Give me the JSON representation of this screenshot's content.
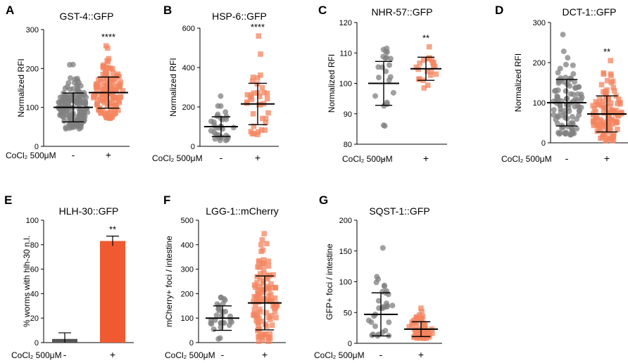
{
  "chart_data": [
    {
      "panel": "A",
      "type": "scatter",
      "title": "GST-4::GFP",
      "ylabel": "Normalized RFI",
      "ylim": [
        0,
        300
      ],
      "yticks": [
        0,
        100,
        200,
        300
      ],
      "condition_label": "CoCl₂ 500μM",
      "categories": [
        "-",
        "+"
      ],
      "series": [
        {
          "name": "-",
          "color": "#808080",
          "marker": "circle",
          "n": 160,
          "mean": 100,
          "sd": 37,
          "min": 45,
          "max": 210
        },
        {
          "name": "+",
          "color": "#F4845F",
          "marker": "square",
          "n": 130,
          "mean": 138,
          "sd": 40,
          "min": 72,
          "max": 258
        }
      ],
      "significance": "****"
    },
    {
      "panel": "B",
      "type": "scatter",
      "title": "HSP-6::GFP",
      "ylabel": "Normalized RFI",
      "ylim": [
        0,
        600
      ],
      "yticks": [
        0,
        200,
        400,
        600
      ],
      "condition_label": "CoCl₂ 500μM",
      "categories": [
        "-",
        "+"
      ],
      "series": [
        {
          "name": "-",
          "color": "#808080",
          "marker": "circle",
          "n": 32,
          "mean": 100,
          "sd": 50,
          "min": 30,
          "max": 255
        },
        {
          "name": "+",
          "color": "#F4845F",
          "marker": "square",
          "n": 36,
          "mean": 215,
          "sd": 105,
          "min": 60,
          "max": 560
        }
      ],
      "significance": "****"
    },
    {
      "panel": "C",
      "type": "scatter",
      "title": "NHR-57::GFP",
      "ylabel": "Normalized RFI",
      "ylim": [
        80,
        120
      ],
      "yticks": [
        80,
        90,
        100,
        110,
        120
      ],
      "condition_label": "CoCl₂ 500μM",
      "categories": [
        "-",
        "+"
      ],
      "series": [
        {
          "name": "-",
          "color": "#808080",
          "marker": "circle",
          "n": 22,
          "mean": 100,
          "sd": 7.2,
          "min": 86,
          "max": 111.5
        },
        {
          "name": "+",
          "color": "#F4845F",
          "marker": "square",
          "n": 22,
          "mean": 104.8,
          "sd": 3.8,
          "min": 98.5,
          "max": 112
        }
      ],
      "significance": "**"
    },
    {
      "panel": "D",
      "type": "scatter",
      "title": "DCT-1::GFP",
      "ylabel": "Normalized RFI",
      "ylim": [
        0,
        300
      ],
      "yticks": [
        0,
        100,
        200,
        300
      ],
      "condition_label": "CoCl₂ 500μM",
      "categories": [
        "-",
        "+"
      ],
      "series": [
        {
          "name": "-",
          "color": "#808080",
          "marker": "circle",
          "n": 100,
          "mean": 100,
          "sd": 58,
          "min": 20,
          "max": 270
        },
        {
          "name": "+",
          "color": "#F4845F",
          "marker": "square",
          "n": 110,
          "mean": 72,
          "sd": 45,
          "min": 5,
          "max": 205
        }
      ],
      "significance": "**"
    },
    {
      "panel": "E",
      "type": "bar",
      "title": "HLH-30::GFP",
      "ylabel": "% worms with hlh-30 n.l.",
      "ylim": [
        0,
        100
      ],
      "yticks": [
        0,
        20,
        40,
        60,
        80,
        100
      ],
      "condition_label": "CoCl₂ 500μM",
      "categories": [
        "-",
        "+"
      ],
      "values": [
        3,
        83
      ],
      "errors": [
        5,
        4
      ],
      "colors": [
        "#555555",
        "#F05A32"
      ],
      "significance": "**"
    },
    {
      "panel": "F",
      "type": "scatter",
      "title": "LGG-1::mCherry",
      "ylabel": "mCherry+ foci / intestine",
      "ylim": [
        0,
        500
      ],
      "yticks": [
        0,
        100,
        200,
        300,
        400,
        500
      ],
      "condition_label": "CoCl₂ 500μM",
      "categories": [
        "-",
        "+"
      ],
      "series": [
        {
          "name": "-",
          "color": "#808080",
          "marker": "circle",
          "n": 30,
          "mean": 100,
          "sd": 50,
          "min": 15,
          "max": 185
        },
        {
          "name": "+",
          "color": "#F4845F",
          "marker": "square",
          "n": 110,
          "mean": 162,
          "sd": 110,
          "min": 5,
          "max": 445
        }
      ],
      "significance": ""
    },
    {
      "panel": "G",
      "type": "scatter",
      "title": "SQST-1::GFP",
      "ylabel": "GFP+ foci / intestine",
      "ylim": [
        0,
        200
      ],
      "yticks": [
        0,
        50,
        100,
        150,
        200
      ],
      "condition_label": "CoCl₂ 500μM",
      "categories": [
        "-",
        "+"
      ],
      "series": [
        {
          "name": "-",
          "color": "#808080",
          "marker": "circle",
          "n": 32,
          "mean": 47,
          "sd": 35,
          "min": 12,
          "max": 155
        },
        {
          "name": "+",
          "color": "#F4845F",
          "marker": "square",
          "n": 55,
          "mean": 23,
          "sd": 12,
          "min": 8,
          "max": 57
        }
      ],
      "significance": ""
    }
  ]
}
